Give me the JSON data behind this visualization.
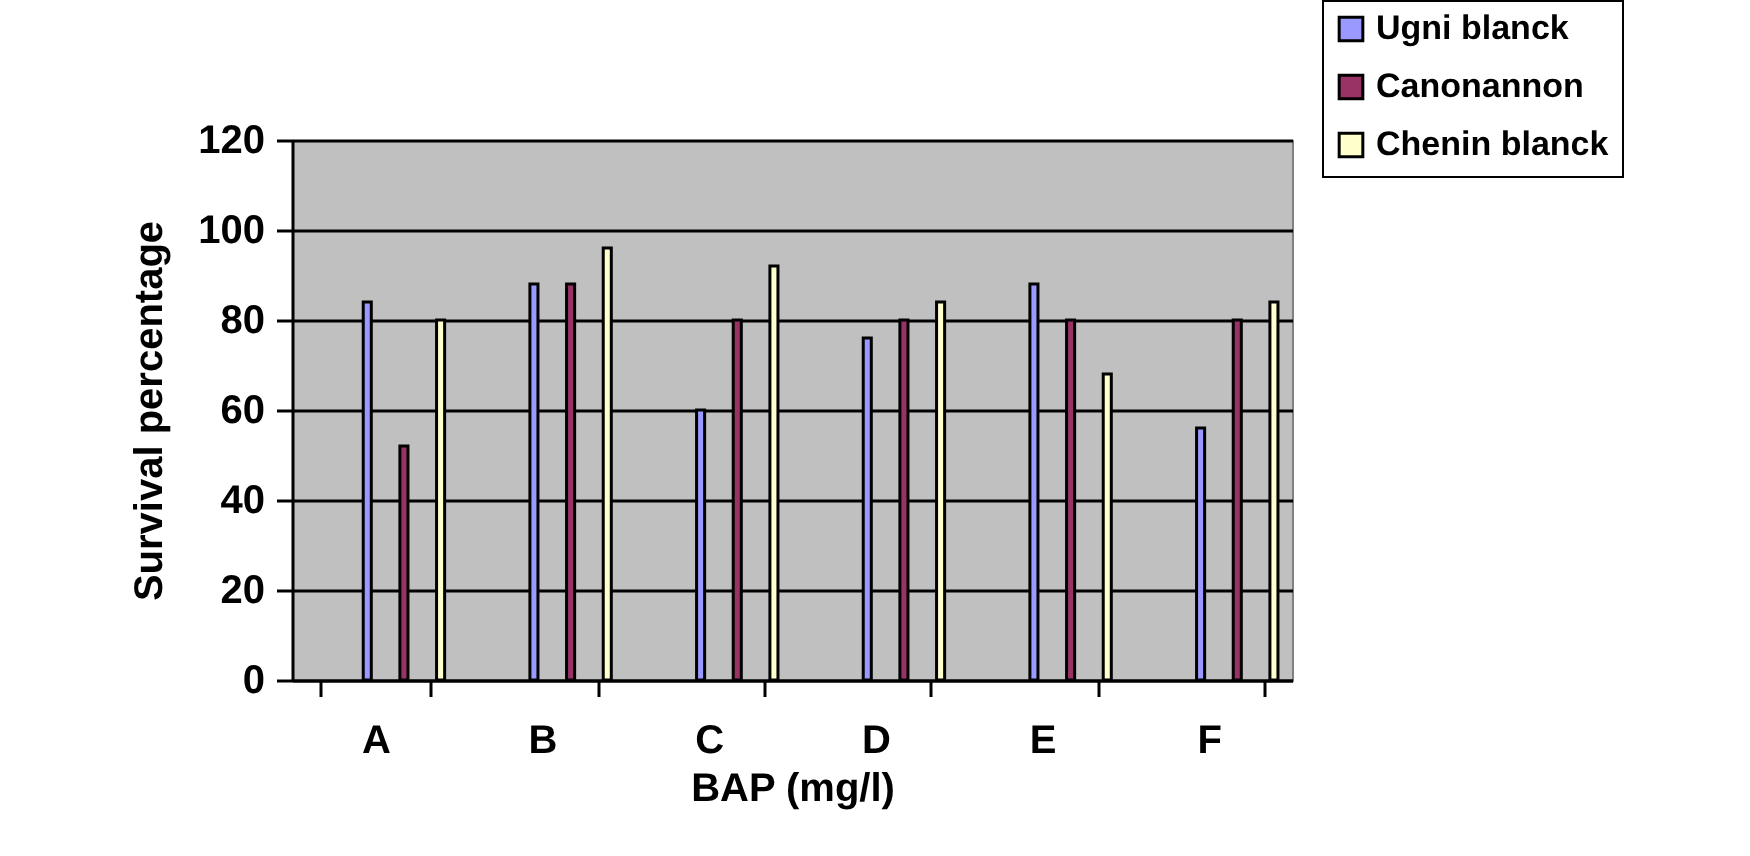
{
  "chart_data": {
    "type": "bar",
    "xlabel": "BAP (mg/l)",
    "ylabel": "Survival percentage",
    "categories": [
      "A",
      "B",
      "C",
      "D",
      "E",
      "F"
    ],
    "series": [
      {
        "name": "Ugni blanck",
        "color": "#9999ff",
        "values": [
          84,
          88,
          60,
          76,
          88,
          56
        ]
      },
      {
        "name": "Canonannon",
        "color": "#993366",
        "values": [
          52,
          88,
          80,
          80,
          80,
          80
        ]
      },
      {
        "name": "Chenin blanck",
        "color": "#ffffcc",
        "values": [
          80,
          96,
          92,
          84,
          68,
          84
        ]
      }
    ],
    "ylim": [
      0,
      120
    ],
    "yticks": [
      0,
      20,
      40,
      60,
      80,
      100,
      120
    ],
    "grid": "y",
    "legend": "top right"
  }
}
